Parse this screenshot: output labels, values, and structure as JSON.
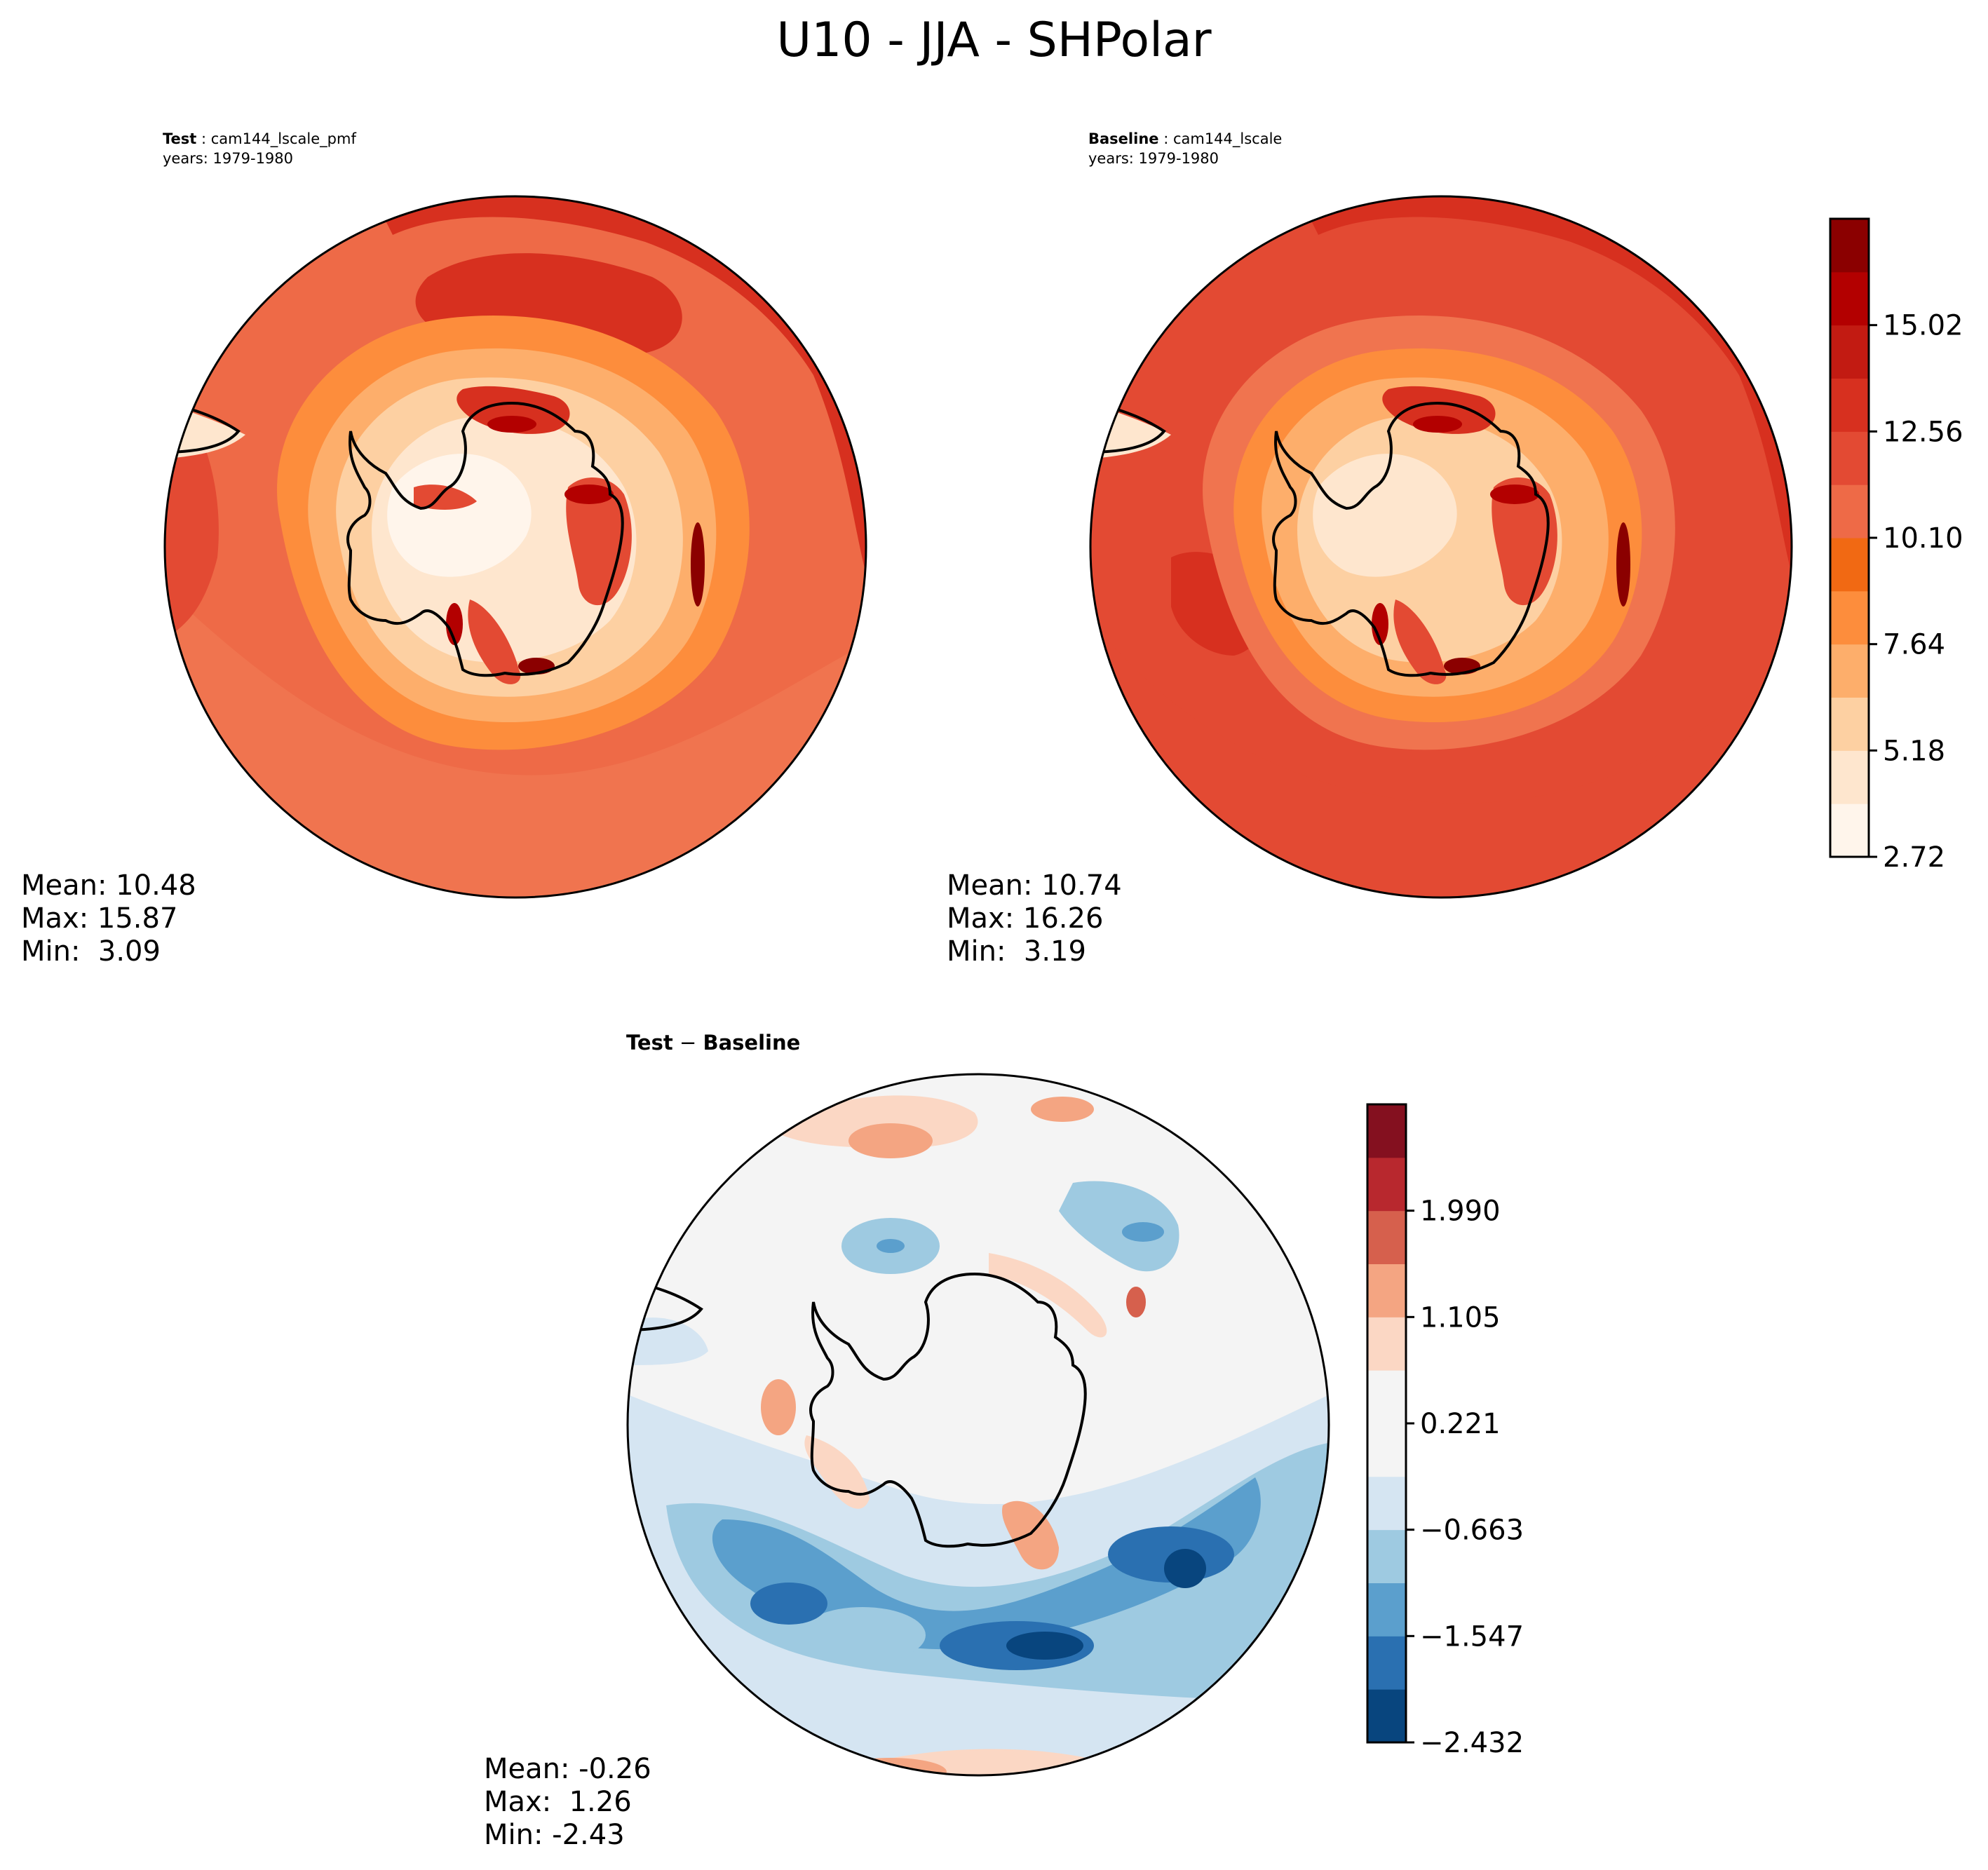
{
  "figure_title": "U10 - JJA - SHPolar",
  "panels": {
    "test": {
      "label": "Test",
      "case": "cam144_lscale_pmf",
      "years": "years: 1979-1980",
      "stats": {
        "mean": "Mean: 10.48",
        "max": "Max: 15.87",
        "min": "Min:  3.09"
      }
    },
    "baseline": {
      "label": "Baseline",
      "case": "cam144_lscale",
      "years": "years: 1979-1980",
      "stats": {
        "mean": "Mean: 10.74",
        "max": "Max: 16.26",
        "min": "Min:  3.19"
      }
    },
    "diff": {
      "title_left": "Test",
      "title_sep": " − ",
      "title_right": "Baseline",
      "stats": {
        "mean": "Mean: -0.26",
        "max": "Max:  1.26",
        "min": "Min: -2.43"
      }
    }
  },
  "chart_data": [
    {
      "type": "heatmap",
      "title": "Test : cam144_lscale_pmf",
      "projection": "south polar stereographic",
      "variable": "U10",
      "season": "JJA",
      "region": "SHPolar",
      "colormap": "Reds",
      "levels": [
        2.72,
        3.95,
        5.18,
        6.41,
        7.64,
        8.87,
        10.1,
        11.33,
        12.56,
        13.79,
        15.02,
        16.25
      ],
      "mean": 10.48,
      "max": 15.87,
      "min": 3.09
    },
    {
      "type": "heatmap",
      "title": "Baseline : cam144_lscale",
      "projection": "south polar stereographic",
      "variable": "U10",
      "season": "JJA",
      "region": "SHPolar",
      "colormap": "Reds",
      "levels": [
        2.72,
        3.95,
        5.18,
        6.41,
        7.64,
        8.87,
        10.1,
        11.33,
        12.56,
        13.79,
        15.02,
        16.25
      ],
      "mean": 10.74,
      "max": 16.26,
      "min": 3.19
    },
    {
      "type": "heatmap",
      "title": "Test − Baseline",
      "projection": "south polar stereographic",
      "colormap": "RdBu_r",
      "levels": [
        -2.432,
        -1.99,
        -1.547,
        -1.105,
        -0.663,
        -0.221,
        0.221,
        0.663,
        1.105,
        1.547,
        1.99,
        2.432
      ],
      "mean": -0.26,
      "max": 1.26,
      "min": -2.43
    }
  ],
  "colorbars": {
    "main": {
      "ticks": [
        "2.72",
        "5.18",
        "7.64",
        "10.10",
        "12.56",
        "15.02"
      ],
      "colors": [
        "#fff5eb",
        "#fee6ce",
        "#fdd0a2",
        "#fdae6b",
        "#fd8d3c",
        "#f16913",
        "#ee6a47",
        "#e34a33",
        "#d7301f",
        "#c21b12",
        "#b30000",
        "#8b0000"
      ]
    },
    "diff": {
      "ticks": [
        "−2.432",
        "−1.547",
        "−0.663",
        "0.221",
        "1.105",
        "1.990"
      ],
      "colors": [
        "#08457e",
        "#2a70b1",
        "#5b9fcd",
        "#9ecae1",
        "#d5e5f2",
        "#f4f4f4",
        "#f4f4f4",
        "#fbd7c4",
        "#f4a582",
        "#d6604d",
        "#b8282e",
        "#84101f"
      ]
    }
  }
}
